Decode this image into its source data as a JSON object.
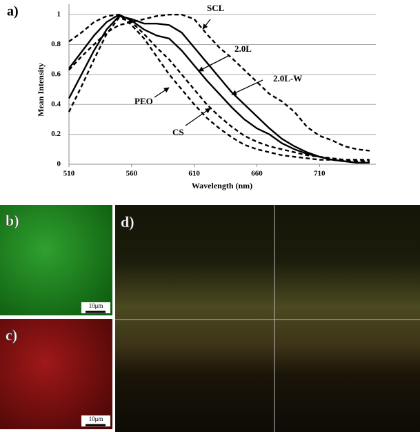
{
  "chart_data": {
    "type": "line",
    "label": "a)",
    "x_label": "Wavelength (nm)",
    "y_label": "Mean Intensity",
    "x": [
      510,
      520,
      530,
      540,
      550,
      560,
      570,
      580,
      590,
      600,
      610,
      620,
      630,
      640,
      650,
      660,
      670,
      680,
      690,
      700,
      710,
      720,
      730,
      740,
      750
    ],
    "xlim": [
      510,
      755
    ],
    "xticks": [
      510,
      560,
      610,
      660,
      710
    ],
    "ylim": [
      0,
      1.07
    ],
    "yticks": [
      0,
      0.2,
      0.4,
      0.6,
      0.8,
      1
    ],
    "grid": true,
    "series": [
      {
        "name": "SCL",
        "color": "#000000",
        "style": "dashed",
        "values": [
          0.63,
          0.72,
          0.8,
          0.88,
          0.93,
          0.95,
          0.97,
          0.99,
          1.0,
          1.0,
          0.97,
          0.87,
          0.78,
          0.71,
          0.63,
          0.55,
          0.47,
          0.42,
          0.35,
          0.25,
          0.19,
          0.16,
          0.12,
          0.1,
          0.09
        ]
      },
      {
        "name": "2.0L",
        "color": "#000000",
        "style": "solid",
        "values": [
          0.64,
          0.75,
          0.86,
          0.95,
          1.0,
          0.96,
          0.9,
          0.86,
          0.84,
          0.76,
          0.66,
          0.56,
          0.47,
          0.38,
          0.3,
          0.24,
          0.2,
          0.14,
          0.1,
          0.07,
          0.05,
          0.03,
          0.02,
          0.01,
          0.01
        ]
      },
      {
        "name": "2.0L-W",
        "color": "#000000",
        "style": "solid",
        "values": [
          0.44,
          0.6,
          0.76,
          0.9,
          0.99,
          0.97,
          0.94,
          0.94,
          0.93,
          0.88,
          0.78,
          0.68,
          0.58,
          0.48,
          0.4,
          0.32,
          0.24,
          0.17,
          0.12,
          0.08,
          0.05,
          0.03,
          0.02,
          0.01,
          0.01
        ]
      },
      {
        "name": "PEO",
        "color": "#000000",
        "style": "dashed",
        "values": [
          0.82,
          0.88,
          0.95,
          0.99,
          1.0,
          0.93,
          0.84,
          0.72,
          0.6,
          0.5,
          0.4,
          0.31,
          0.24,
          0.18,
          0.13,
          0.1,
          0.08,
          0.06,
          0.05,
          0.04,
          0.03,
          0.03,
          0.02,
          0.02,
          0.02
        ]
      },
      {
        "name": "CS",
        "color": "#000000",
        "style": "dashed",
        "values": [
          0.35,
          0.52,
          0.7,
          0.87,
          0.98,
          0.95,
          0.87,
          0.78,
          0.7,
          0.6,
          0.5,
          0.4,
          0.32,
          0.25,
          0.19,
          0.15,
          0.12,
          0.1,
          0.08,
          0.06,
          0.05,
          0.04,
          0.03,
          0.03,
          0.03
        ]
      }
    ]
  },
  "panels": [
    {
      "label": "b)",
      "scale_bar": "10μm"
    },
    {
      "label": "c)",
      "scale_bar": "10μm"
    },
    {
      "label": "d)"
    }
  ]
}
